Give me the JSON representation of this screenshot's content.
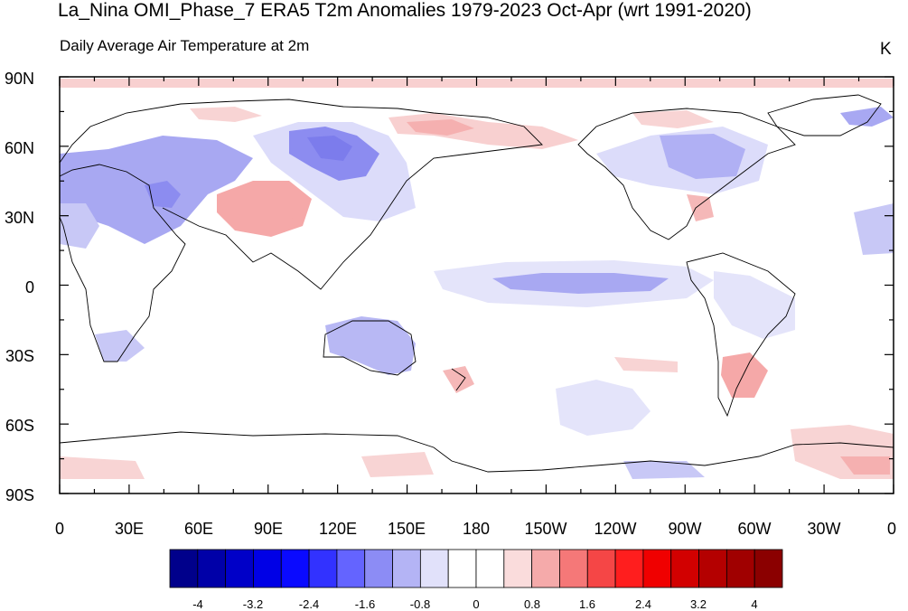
{
  "title": "La_Nina OMI_Phase_7 ERA5 T2m Anomalies 1979-2023 Oct-Apr (wrt 1991-2020)",
  "subtitle": "Daily Average Air Temperature at 2m",
  "units": "K",
  "lat_labels": [
    "90N",
    "60N",
    "30N",
    "0",
    "30S",
    "60S",
    "90S"
  ],
  "lon_labels": [
    "0",
    "30E",
    "60E",
    "90E",
    "120E",
    "150E",
    "180",
    "150W",
    "120W",
    "90W",
    "60W",
    "30W",
    "0"
  ],
  "colorbar": {
    "labels": [
      "-4",
      "-3.2",
      "-2.4",
      "-1.6",
      "-0.8",
      "0",
      "0.8",
      "1.6",
      "2.4",
      "3.2",
      "4"
    ],
    "colors": [
      "#00008b",
      "#0000a8",
      "#0000c8",
      "#0000e6",
      "#0a0aff",
      "#3232ff",
      "#6464ff",
      "#8c8cf5",
      "#b4b4f5",
      "#e1e1fa",
      "#ffffff",
      "#ffffff",
      "#fadcdc",
      "#f5aaaa",
      "#f57878",
      "#f54646",
      "#ff1e1e",
      "#f00000",
      "#d20000",
      "#b40000",
      "#a00000",
      "#8b0000"
    ]
  },
  "anomaly_regions": [
    {
      "name": "central-asia-warm",
      "level": 1.6,
      "color": "#f5a8a8"
    },
    {
      "name": "siberia-warm",
      "level": 0.8,
      "color": "#f8d0d0"
    },
    {
      "name": "arctic-band-warm",
      "level": 0.8,
      "color": "#f8d0d0"
    },
    {
      "name": "mongolia-cold",
      "level": -1.6,
      "color": "#8c8cf0"
    },
    {
      "name": "west-asia-cold",
      "level": -1.2,
      "color": "#a8a8f2"
    },
    {
      "name": "equatorial-pacific-cold",
      "level": -1.2,
      "color": "#a8a8f2"
    },
    {
      "name": "canada-cold",
      "level": -1.2,
      "color": "#a8a8f2"
    },
    {
      "name": "australia-cold",
      "level": -0.8,
      "color": "#b8b8f4"
    },
    {
      "name": "argentina-warm",
      "level": 1.6,
      "color": "#f5a8a8"
    },
    {
      "name": "antarctic-warm",
      "level": 0.8,
      "color": "#f8d0d0"
    }
  ]
}
